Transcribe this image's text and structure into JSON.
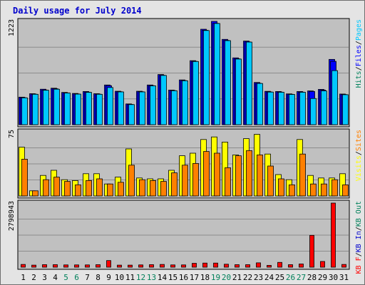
{
  "title": "Daily usage for July 2014",
  "colors": {
    "background": "#e4e4e4",
    "panel": "#c0c0c0",
    "grid": "#8c8c8c",
    "title": "#0000cc",
    "hits": "#00805a",
    "files": "#0000ff",
    "pages": "#00c8ff",
    "visits": "#ffff00",
    "sites": "#ff8000",
    "kb_in": "#0000cc",
    "kb_out": "#00805a",
    "kb_f": "#ff0000",
    "weekend_day": "#00805a",
    "weekday_day": "#000000",
    "separator": "#000000"
  },
  "chart_data": [
    {
      "type": "bar",
      "panel": "hits-files-pages",
      "ymax_label": "1223",
      "ylim": [
        0,
        1223
      ],
      "grid": true,
      "categories": [
        "1",
        "2",
        "3",
        "4",
        "5",
        "6",
        "7",
        "8",
        "9",
        "10",
        "11",
        "12",
        "13",
        "14",
        "15",
        "16",
        "17",
        "18",
        "19",
        "20",
        "21",
        "22",
        "23",
        "24",
        "25",
        "26",
        "27",
        "28",
        "29",
        "30",
        "31"
      ],
      "legend": [
        "Hits",
        "/",
        "Files",
        "/",
        "Pages"
      ],
      "series": [
        {
          "name": "Hits",
          "values": [
            326,
            367,
            420,
            432,
            382,
            370,
            393,
            367,
            470,
            396,
            246,
            396,
            470,
            594,
            410,
            530,
            758,
            1130,
            1223,
            1010,
            791,
            990,
            500,
            395,
            393,
            365,
            393,
            400,
            418,
            773,
            363
          ]
        },
        {
          "name": "Files",
          "values": [
            320,
            362,
            410,
            425,
            376,
            364,
            385,
            362,
            462,
            390,
            240,
            390,
            462,
            585,
            404,
            522,
            750,
            1118,
            1200,
            998,
            780,
            980,
            490,
            388,
            386,
            360,
            386,
            394,
            410,
            750,
            357
          ]
        },
        {
          "name": "Pages",
          "values": [
            318,
            360,
            408,
            420,
            375,
            362,
            383,
            360,
            440,
            388,
            238,
            388,
            460,
            583,
            402,
            520,
            748,
            1115,
            1198,
            995,
            777,
            978,
            488,
            386,
            384,
            358,
            384,
            310,
            400,
            640,
            355
          ]
        }
      ]
    },
    {
      "type": "bar",
      "panel": "visits-sites",
      "ymax_label": "75",
      "ylim": [
        0,
        75
      ],
      "grid": true,
      "categories": [
        "1",
        "2",
        "3",
        "4",
        "5",
        "6",
        "7",
        "8",
        "9",
        "10",
        "11",
        "12",
        "13",
        "14",
        "15",
        "16",
        "17",
        "18",
        "19",
        "20",
        "21",
        "22",
        "23",
        "24",
        "25",
        "26",
        "27",
        "28",
        "29",
        "30",
        "31"
      ],
      "legend": [
        "Visits",
        "/",
        "Sites"
      ],
      "series": [
        {
          "name": "Visits",
          "values": [
            57,
            6,
            24,
            30,
            19,
            18,
            26,
            26,
            14,
            22,
            55,
            21,
            20,
            20,
            30,
            47,
            50,
            66,
            69,
            63,
            48,
            67,
            72,
            49,
            25,
            19,
            66,
            24,
            21,
            21,
            26
          ]
        },
        {
          "name": "Sites",
          "values": [
            43,
            6,
            19,
            22,
            17,
            13,
            18,
            20,
            14,
            16,
            36,
            19,
            18,
            17,
            27,
            36,
            38,
            52,
            50,
            33,
            47,
            53,
            48,
            35,
            20,
            13,
            49,
            14,
            14,
            19,
            13
          ]
        }
      ]
    },
    {
      "type": "bar",
      "panel": "kb",
      "ymax_label": "2798943",
      "ylim": [
        0,
        2798943
      ],
      "grid": true,
      "categories": [
        "1",
        "2",
        "3",
        "4",
        "5",
        "6",
        "7",
        "8",
        "9",
        "10",
        "11",
        "12",
        "13",
        "14",
        "15",
        "16",
        "17",
        "18",
        "19",
        "20",
        "21",
        "22",
        "23",
        "24",
        "25",
        "26",
        "27",
        "28",
        "29",
        "30",
        "31"
      ],
      "legend": [
        "KB F",
        "/",
        "KB In",
        "/",
        "KB Out"
      ],
      "series": [
        {
          "name": "KB F",
          "values": [
            120000,
            90000,
            110000,
            110000,
            100000,
            100000,
            100000,
            110000,
            290000,
            90000,
            90000,
            100000,
            110000,
            120000,
            100000,
            100000,
            170000,
            180000,
            180000,
            130000,
            110000,
            110000,
            190000,
            80000,
            210000,
            110000,
            140000,
            1390000,
            250000,
            2798943,
            120000
          ]
        }
      ]
    }
  ],
  "weekend_days": [
    5,
    6,
    12,
    13,
    19,
    20,
    26,
    27
  ]
}
